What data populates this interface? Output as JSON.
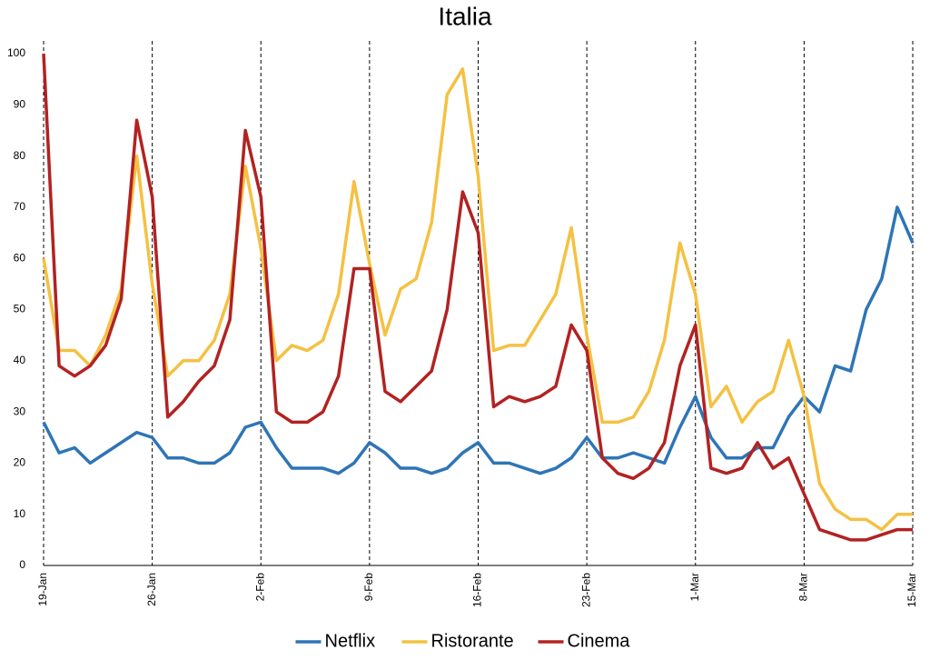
{
  "chart_data": {
    "type": "line",
    "title": "Italia",
    "categories": [
      "19-Jan",
      null,
      null,
      null,
      null,
      null,
      null,
      "26-Jan",
      null,
      null,
      null,
      null,
      null,
      null,
      "2-Feb",
      null,
      null,
      null,
      null,
      null,
      null,
      "9-Feb",
      null,
      null,
      null,
      null,
      null,
      null,
      "16-Feb",
      null,
      null,
      null,
      null,
      null,
      null,
      "23-Feb",
      null,
      null,
      null,
      null,
      null,
      null,
      "1-Mar",
      null,
      null,
      null,
      null,
      null,
      null,
      "8-Mar",
      null,
      null,
      null,
      null,
      null,
      null,
      "15-Mar"
    ],
    "series": [
      {
        "name": "Netflix",
        "color": "#2e75b6",
        "values": [
          28,
          22,
          23,
          20,
          22,
          24,
          26,
          25,
          21,
          21,
          20,
          20,
          22,
          27,
          28,
          23,
          19,
          19,
          19,
          18,
          20,
          24,
          22,
          19,
          19,
          18,
          19,
          22,
          24,
          20,
          20,
          19,
          18,
          19,
          21,
          25,
          21,
          21,
          22,
          21,
          20,
          27,
          33,
          25,
          21,
          21,
          23,
          23,
          29,
          33,
          30,
          39,
          38,
          50,
          56,
          70,
          63
        ]
      },
      {
        "name": "Ristorante",
        "color": "#f4c142",
        "values": [
          60,
          42,
          42,
          39,
          45,
          54,
          80,
          55,
          37,
          40,
          40,
          44,
          53,
          78,
          62,
          40,
          43,
          42,
          44,
          53,
          75,
          59,
          45,
          54,
          56,
          67,
          92,
          97,
          76,
          42,
          43,
          43,
          48,
          53,
          66,
          45,
          28,
          28,
          29,
          34,
          44,
          63,
          53,
          31,
          35,
          28,
          32,
          34,
          44,
          33,
          16,
          11,
          9,
          9,
          7,
          10,
          10
        ]
      },
      {
        "name": "Cinema",
        "color": "#b22222",
        "values": [
          100,
          39,
          37,
          39,
          43,
          52,
          87,
          72,
          29,
          32,
          36,
          39,
          48,
          85,
          72,
          30,
          28,
          28,
          30,
          37,
          58,
          58,
          34,
          32,
          35,
          38,
          50,
          73,
          65,
          31,
          33,
          32,
          33,
          35,
          47,
          42,
          21,
          18,
          17,
          19,
          24,
          39,
          47,
          19,
          18,
          19,
          24,
          19,
          21,
          14,
          7,
          6,
          5,
          5,
          6,
          7,
          7
        ]
      }
    ],
    "ylim": [
      0,
      100
    ],
    "yticks": [
      0,
      10,
      20,
      30,
      40,
      50,
      60,
      70,
      80,
      90,
      100
    ],
    "grid": false,
    "legend": "bottom"
  }
}
